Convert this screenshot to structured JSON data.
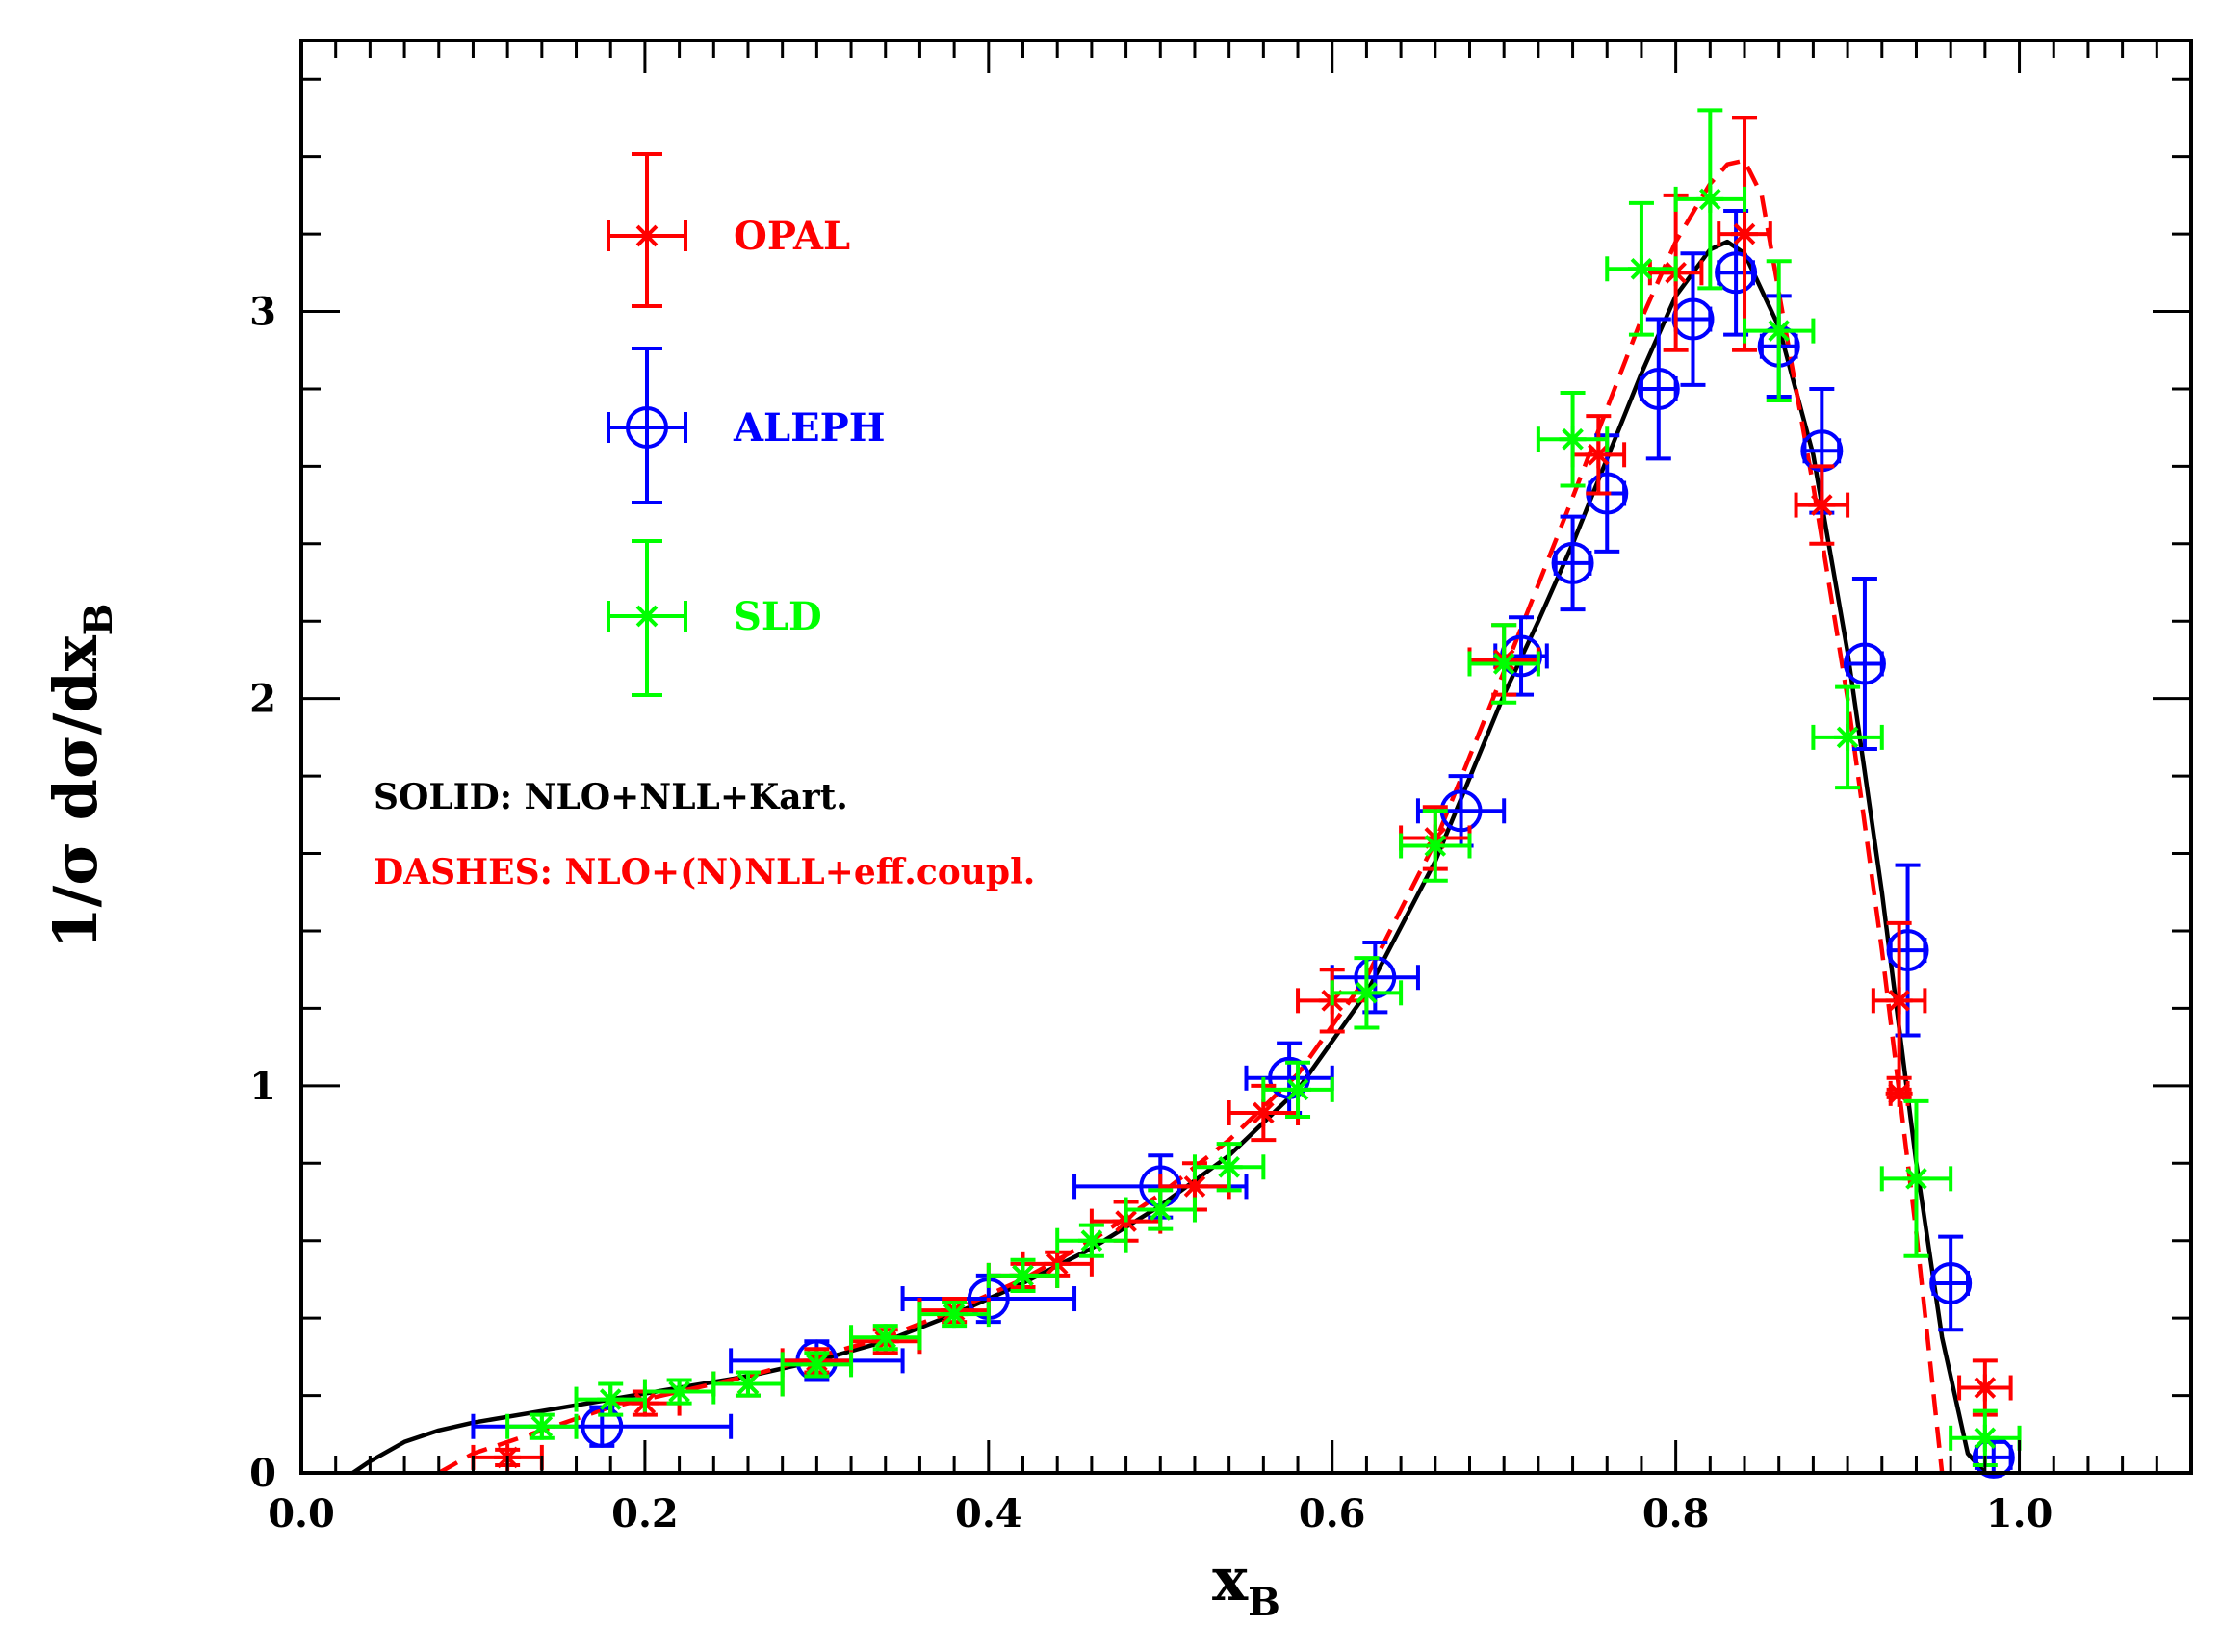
{
  "chart_data": {
    "type": "scatter",
    "title": "",
    "xlabel": "x",
    "xlabel_sub": "B",
    "ylabel": "1/σ dσ/dx",
    "ylabel_sub": "B",
    "xlim": [
      0.0,
      1.1
    ],
    "ylim": [
      0.0,
      3.7
    ],
    "x_ticks": [
      "0.0",
      "0.2",
      "0.4",
      "0.6",
      "0.8",
      "1.0"
    ],
    "x_tick_values": [
      0.0,
      0.2,
      0.4,
      0.6,
      0.8,
      1.0
    ],
    "y_ticks": [
      "0",
      "1",
      "2",
      "3"
    ],
    "y_tick_values": [
      0,
      1,
      2,
      3
    ],
    "legend_position": "top-left",
    "annotations": [
      {
        "text": "SOLID: NLO+NLL+Kart.",
        "color": "#000000"
      },
      {
        "text": "DASHES: NLO+(N)NLL+eff.coupl.",
        "color": "#ff0000"
      }
    ],
    "series": [
      {
        "name": "OPAL",
        "color": "#ff0000",
        "marker": "star",
        "points": [
          {
            "x": 0.12,
            "y": 0.04,
            "xerr": 0.02,
            "yerr": 0.02
          },
          {
            "x": 0.2,
            "y": 0.18,
            "xerr": 0.02,
            "yerr": 0.03
          },
          {
            "x": 0.26,
            "y": 0.23,
            "xerr": 0.02,
            "yerr": 0.03
          },
          {
            "x": 0.3,
            "y": 0.29,
            "xerr": 0.02,
            "yerr": 0.03
          },
          {
            "x": 0.34,
            "y": 0.34,
            "xerr": 0.02,
            "yerr": 0.03
          },
          {
            "x": 0.38,
            "y": 0.42,
            "xerr": 0.02,
            "yerr": 0.03
          },
          {
            "x": 0.42,
            "y": 0.51,
            "xerr": 0.02,
            "yerr": 0.03
          },
          {
            "x": 0.44,
            "y": 0.54,
            "xerr": 0.02,
            "yerr": 0.03
          },
          {
            "x": 0.48,
            "y": 0.65,
            "xerr": 0.02,
            "yerr": 0.05
          },
          {
            "x": 0.52,
            "y": 0.74,
            "xerr": 0.02,
            "yerr": 0.06
          },
          {
            "x": 0.56,
            "y": 0.93,
            "xerr": 0.02,
            "yerr": 0.07
          },
          {
            "x": 0.6,
            "y": 1.22,
            "xerr": 0.02,
            "yerr": 0.08
          },
          {
            "x": 0.66,
            "y": 1.64,
            "xerr": 0.02,
            "yerr": 0.08
          },
          {
            "x": 0.7,
            "y": 2.1,
            "xerr": 0.02,
            "yerr": 0.09
          },
          {
            "x": 0.755,
            "y": 2.63,
            "xerr": 0.015,
            "yerr": 0.1
          },
          {
            "x": 0.8,
            "y": 3.1,
            "xerr": 0.015,
            "yerr": 0.2
          },
          {
            "x": 0.84,
            "y": 3.2,
            "xerr": 0.015,
            "yerr": 0.3
          },
          {
            "x": 0.885,
            "y": 2.5,
            "xerr": 0.015,
            "yerr": 0.1
          },
          {
            "x": 0.93,
            "y": 1.22,
            "xerr": 0.015,
            "yerr": 0.2
          },
          {
            "x": 0.93,
            "y": 0.98,
            "xerr": 0.005,
            "yerr": 0.01
          },
          {
            "x": 0.98,
            "y": 0.22,
            "xerr": 0.015,
            "yerr": 0.07
          }
        ]
      },
      {
        "name": "ALEPH",
        "color": "#0000ff",
        "marker": "circle",
        "points": [
          {
            "x": 0.175,
            "y": 0.12,
            "xerr": 0.075,
            "yerr": 0.05
          },
          {
            "x": 0.3,
            "y": 0.29,
            "xerr": 0.05,
            "yerr": 0.05
          },
          {
            "x": 0.4,
            "y": 0.45,
            "xerr": 0.05,
            "yerr": 0.06
          },
          {
            "x": 0.5,
            "y": 0.74,
            "xerr": 0.05,
            "yerr": 0.08
          },
          {
            "x": 0.575,
            "y": 1.02,
            "xerr": 0.025,
            "yerr": 0.09
          },
          {
            "x": 0.625,
            "y": 1.28,
            "xerr": 0.025,
            "yerr": 0.09
          },
          {
            "x": 0.675,
            "y": 1.71,
            "xerr": 0.025,
            "yerr": 0.09
          },
          {
            "x": 0.71,
            "y": 2.11,
            "xerr": 0.015,
            "yerr": 0.1
          },
          {
            "x": 0.74,
            "y": 2.35,
            "xerr": 0.01,
            "yerr": 0.12
          },
          {
            "x": 0.76,
            "y": 2.53,
            "xerr": 0.01,
            "yerr": 0.15
          },
          {
            "x": 0.79,
            "y": 2.8,
            "xerr": 0.01,
            "yerr": 0.18
          },
          {
            "x": 0.81,
            "y": 2.98,
            "xerr": 0.01,
            "yerr": 0.17
          },
          {
            "x": 0.835,
            "y": 3.1,
            "xerr": 0.01,
            "yerr": 0.16
          },
          {
            "x": 0.86,
            "y": 2.91,
            "xerr": 0.01,
            "yerr": 0.13
          },
          {
            "x": 0.885,
            "y": 2.64,
            "xerr": 0.01,
            "yerr": 0.16
          },
          {
            "x": 0.91,
            "y": 2.09,
            "xerr": 0.01,
            "yerr": 0.22
          },
          {
            "x": 0.935,
            "y": 1.35,
            "xerr": 0.01,
            "yerr": 0.22
          },
          {
            "x": 0.96,
            "y": 0.49,
            "xerr": 0.01,
            "yerr": 0.12
          },
          {
            "x": 0.985,
            "y": 0.04,
            "xerr": 0.01,
            "yerr": 0.04
          }
        ]
      },
      {
        "name": "SLD",
        "color": "#00ff00",
        "marker": "star",
        "points": [
          {
            "x": 0.14,
            "y": 0.12,
            "xerr": 0.02,
            "yerr": 0.03
          },
          {
            "x": 0.18,
            "y": 0.19,
            "xerr": 0.02,
            "yerr": 0.04
          },
          {
            "x": 0.22,
            "y": 0.21,
            "xerr": 0.02,
            "yerr": 0.03
          },
          {
            "x": 0.26,
            "y": 0.23,
            "xerr": 0.02,
            "yerr": 0.03
          },
          {
            "x": 0.3,
            "y": 0.28,
            "xerr": 0.02,
            "yerr": 0.03
          },
          {
            "x": 0.34,
            "y": 0.35,
            "xerr": 0.02,
            "yerr": 0.03
          },
          {
            "x": 0.38,
            "y": 0.41,
            "xerr": 0.02,
            "yerr": 0.03
          },
          {
            "x": 0.42,
            "y": 0.51,
            "xerr": 0.02,
            "yerr": 0.04
          },
          {
            "x": 0.46,
            "y": 0.6,
            "xerr": 0.02,
            "yerr": 0.04
          },
          {
            "x": 0.5,
            "y": 0.68,
            "xerr": 0.02,
            "yerr": 0.05
          },
          {
            "x": 0.54,
            "y": 0.79,
            "xerr": 0.02,
            "yerr": 0.06
          },
          {
            "x": 0.58,
            "y": 0.99,
            "xerr": 0.02,
            "yerr": 0.07
          },
          {
            "x": 0.62,
            "y": 1.24,
            "xerr": 0.02,
            "yerr": 0.09
          },
          {
            "x": 0.66,
            "y": 1.62,
            "xerr": 0.02,
            "yerr": 0.09
          },
          {
            "x": 0.7,
            "y": 2.09,
            "xerr": 0.02,
            "yerr": 0.1
          },
          {
            "x": 0.74,
            "y": 2.67,
            "xerr": 0.02,
            "yerr": 0.12
          },
          {
            "x": 0.78,
            "y": 3.11,
            "xerr": 0.02,
            "yerr": 0.17
          },
          {
            "x": 0.82,
            "y": 3.29,
            "xerr": 0.02,
            "yerr": 0.23
          },
          {
            "x": 0.86,
            "y": 2.95,
            "xerr": 0.02,
            "yerr": 0.18
          },
          {
            "x": 0.9,
            "y": 1.9,
            "xerr": 0.02,
            "yerr": 0.13
          },
          {
            "x": 0.94,
            "y": 0.76,
            "xerr": 0.02,
            "yerr": 0.2
          },
          {
            "x": 0.98,
            "y": 0.09,
            "xerr": 0.02,
            "yerr": 0.07
          }
        ]
      }
    ],
    "curves": [
      {
        "name": "SOLID: NLO+NLL+Kart.",
        "color": "#000000",
        "dash": "solid",
        "x": [
          0.03,
          0.04,
          0.06,
          0.08,
          0.1,
          0.14,
          0.18,
          0.22,
          0.26,
          0.3,
          0.34,
          0.38,
          0.42,
          0.46,
          0.5,
          0.54,
          0.58,
          0.62,
          0.66,
          0.7,
          0.72,
          0.74,
          0.76,
          0.78,
          0.8,
          0.82,
          0.83,
          0.84,
          0.86,
          0.88,
          0.9,
          0.92,
          0.94,
          0.955,
          0.97,
          0.98
        ],
        "y": [
          0.0,
          0.03,
          0.08,
          0.11,
          0.13,
          0.16,
          0.19,
          0.22,
          0.25,
          0.29,
          0.34,
          0.41,
          0.49,
          0.58,
          0.69,
          0.82,
          0.99,
          1.24,
          1.58,
          2.01,
          2.2,
          2.4,
          2.62,
          2.84,
          3.04,
          3.16,
          3.18,
          3.15,
          2.96,
          2.63,
          2.12,
          1.5,
          0.8,
          0.35,
          0.05,
          0.0
        ]
      },
      {
        "name": "DASHES: NLO+(N)NLL+eff.coupl.",
        "color": "#ff0000",
        "dash": "dashed",
        "x": [
          0.08,
          0.1,
          0.14,
          0.18,
          0.22,
          0.26,
          0.3,
          0.34,
          0.38,
          0.42,
          0.46,
          0.5,
          0.54,
          0.58,
          0.62,
          0.66,
          0.7,
          0.74,
          0.78,
          0.8,
          0.82,
          0.83,
          0.84,
          0.85,
          0.86,
          0.88,
          0.9,
          0.92,
          0.94,
          0.955
        ],
        "y": [
          0.0,
          0.05,
          0.11,
          0.17,
          0.21,
          0.25,
          0.3,
          0.35,
          0.42,
          0.5,
          0.6,
          0.72,
          0.86,
          1.03,
          1.28,
          1.63,
          2.07,
          2.52,
          2.98,
          3.18,
          3.33,
          3.38,
          3.39,
          3.3,
          3.05,
          2.55,
          2.0,
          1.35,
          0.62,
          0.0
        ]
      }
    ]
  }
}
